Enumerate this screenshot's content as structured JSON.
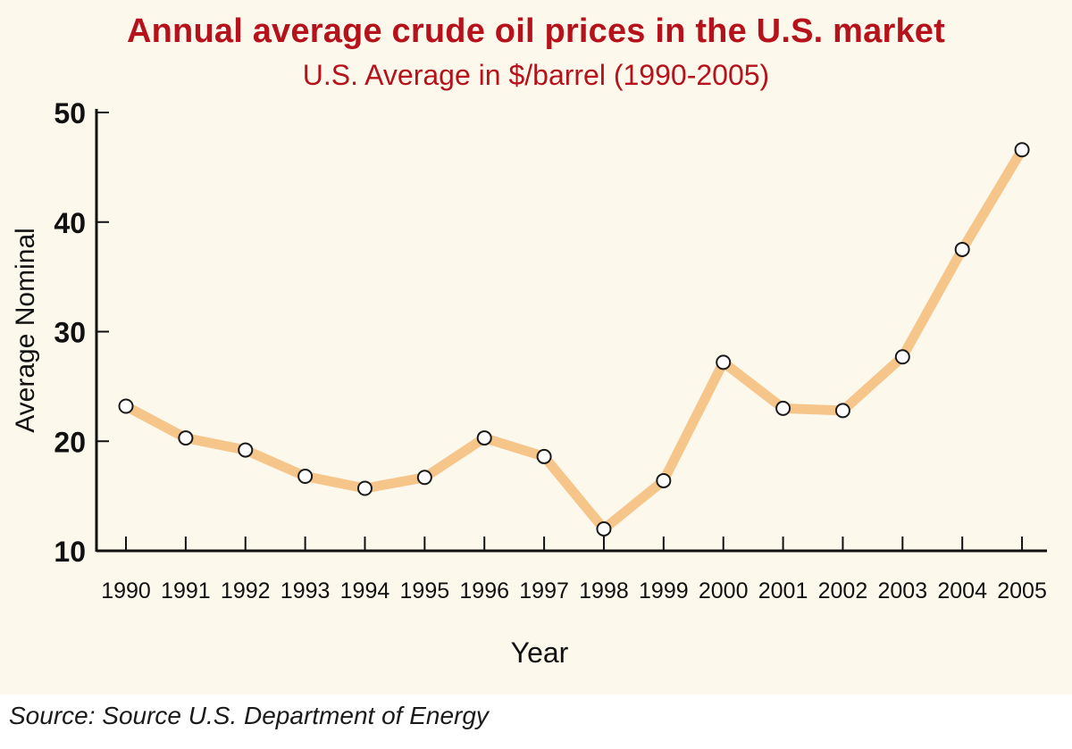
{
  "chart_data": {
    "type": "line",
    "title": "Annual average crude oil prices in the U.S. market",
    "subtitle": "U.S. Average in $/barrel (1990-2005)",
    "xlabel": "Year",
    "ylabel": "Average Nominal",
    "categories": [
      "1990",
      "1991",
      "1992",
      "1993",
      "1994",
      "1995",
      "1996",
      "1997",
      "1998",
      "1999",
      "2000",
      "2001",
      "2002",
      "2003",
      "2004",
      "2005"
    ],
    "values": [
      23.2,
      20.3,
      19.2,
      16.8,
      15.7,
      16.7,
      20.3,
      18.6,
      12.0,
      16.4,
      27.2,
      23.0,
      22.8,
      27.7,
      37.5,
      46.6
    ],
    "ylim": [
      10,
      50
    ],
    "yticks": [
      "10",
      "20",
      "30",
      "40",
      "50"
    ],
    "grid": false,
    "legend": "none",
    "line_color": "#f5c58a",
    "marker_fill": "#ffffff",
    "marker_stroke": "#1a1a1a"
  },
  "footer": {
    "source": "Source: Source U.S. Department of Energy"
  },
  "colors": {
    "title": "#b5121b",
    "panel_background": "#fdf8ec"
  }
}
